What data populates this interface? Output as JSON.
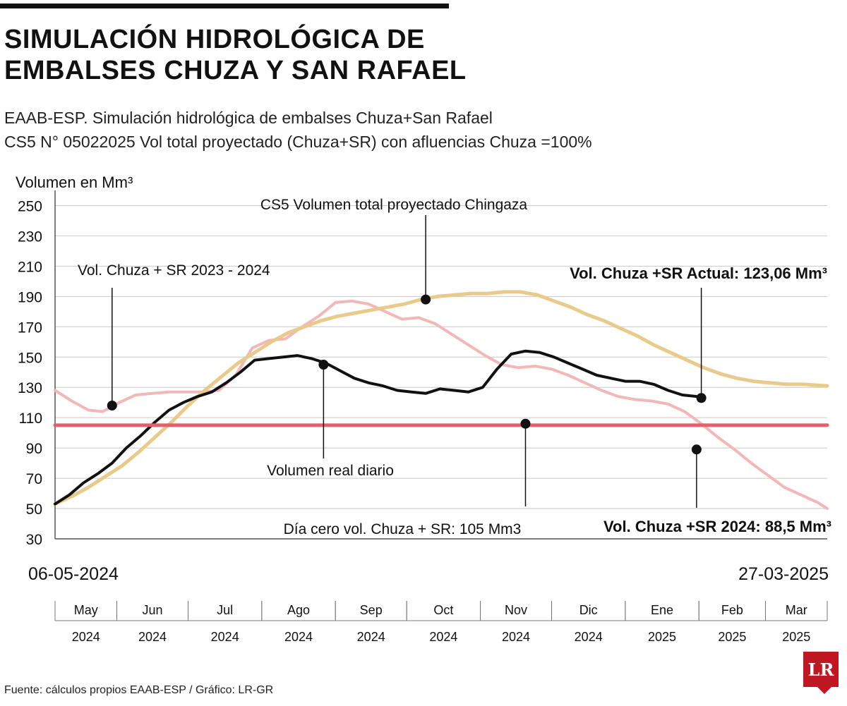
{
  "title_line1": "SIMULACIÓN HIDROLÓGICA DE",
  "title_line2": "EMBALSES CHUZA Y SAN RAFAEL",
  "subtitle_line1": "EAAB-ESP. Simulación hidrológica de embalses Chuza+San Rafael",
  "subtitle_line2": "CS5 N° 05022025 Vol total proyectado (Chuza+SR) con afluencias Chuza =100%",
  "start_date": "06-05-2024",
  "end_date": "27-03-2025",
  "source": "Fuente: cálculos propios EAAB-ESP / Gráfico: LR-GR",
  "logo_text": "LR",
  "chart_data": {
    "type": "line",
    "ylabel": "Volumen en Mm³",
    "ylim": [
      30,
      260
    ],
    "yticks": [
      250,
      230,
      210,
      190,
      170,
      150,
      130,
      110,
      90,
      70,
      50,
      30
    ],
    "xlim": [
      "2024-05-06",
      "2025-03-27"
    ],
    "grid": true,
    "months": [
      {
        "label": "May",
        "year": "2024",
        "start": "2024-05-06",
        "end": "2024-06-01"
      },
      {
        "label": "Jun",
        "year": "2024",
        "start": "2024-06-01",
        "end": "2024-07-01"
      },
      {
        "label": "Jul",
        "year": "2024",
        "start": "2024-07-01",
        "end": "2024-08-01"
      },
      {
        "label": "Ago",
        "year": "2024",
        "start": "2024-08-01",
        "end": "2024-09-01"
      },
      {
        "label": "Sep",
        "year": "2024",
        "start": "2024-09-01",
        "end": "2024-10-01"
      },
      {
        "label": "Oct",
        "year": "2024",
        "start": "2024-10-01",
        "end": "2024-11-01"
      },
      {
        "label": "Nov",
        "year": "2024",
        "start": "2024-11-01",
        "end": "2024-12-01"
      },
      {
        "label": "Dic",
        "year": "2024",
        "start": "2024-12-01",
        "end": "2025-01-01"
      },
      {
        "label": "Ene",
        "year": "2025",
        "start": "2025-01-01",
        "end": "2025-02-01"
      },
      {
        "label": "Feb",
        "year": "2025",
        "start": "2025-02-01",
        "end": "2025-03-01"
      },
      {
        "label": "Mar",
        "year": "2025",
        "start": "2025-03-01",
        "end": "2025-03-27"
      }
    ],
    "series": [
      {
        "key": "chuza_sr_2023_2024",
        "color": "#f2b8b8",
        "width": 4,
        "points": [
          [
            "2024-05-06",
            128
          ],
          [
            "2024-05-13",
            121
          ],
          [
            "2024-05-20",
            115
          ],
          [
            "2024-05-26",
            114
          ],
          [
            "2024-06-02",
            120
          ],
          [
            "2024-06-09",
            125
          ],
          [
            "2024-06-16",
            126
          ],
          [
            "2024-06-23",
            127
          ],
          [
            "2024-06-30",
            127
          ],
          [
            "2024-07-07",
            127
          ],
          [
            "2024-07-14",
            128
          ],
          [
            "2024-07-21",
            138
          ],
          [
            "2024-07-28",
            156
          ],
          [
            "2024-08-04",
            161
          ],
          [
            "2024-08-11",
            162
          ],
          [
            "2024-08-18",
            170
          ],
          [
            "2024-08-25",
            177
          ],
          [
            "2024-09-01",
            186
          ],
          [
            "2024-09-08",
            187
          ],
          [
            "2024-09-15",
            185
          ],
          [
            "2024-09-22",
            180
          ],
          [
            "2024-09-29",
            175
          ],
          [
            "2024-10-06",
            176
          ],
          [
            "2024-10-13",
            172
          ],
          [
            "2024-10-20",
            165
          ],
          [
            "2024-10-27",
            158
          ],
          [
            "2024-11-03",
            151
          ],
          [
            "2024-11-10",
            145
          ],
          [
            "2024-11-17",
            143
          ],
          [
            "2024-11-24",
            144
          ],
          [
            "2024-12-01",
            142
          ],
          [
            "2024-12-08",
            138
          ],
          [
            "2024-12-15",
            133
          ],
          [
            "2024-12-22",
            128
          ],
          [
            "2024-12-29",
            124
          ],
          [
            "2025-01-05",
            122
          ],
          [
            "2025-01-12",
            121
          ],
          [
            "2025-01-19",
            119
          ],
          [
            "2025-01-26",
            114
          ],
          [
            "2025-02-02",
            106
          ],
          [
            "2025-02-09",
            97
          ],
          [
            "2025-02-16",
            89
          ],
          [
            "2025-02-23",
            80
          ],
          [
            "2025-03-02",
            72
          ],
          [
            "2025-03-09",
            64
          ],
          [
            "2025-03-16",
            59
          ],
          [
            "2025-03-23",
            54
          ],
          [
            "2025-03-27",
            50
          ]
        ]
      },
      {
        "key": "cs5_volumen_total_proyectado",
        "color": "#e8cb8a",
        "width": 5,
        "points": [
          [
            "2024-05-06",
            53
          ],
          [
            "2024-05-13",
            58
          ],
          [
            "2024-05-20",
            64
          ],
          [
            "2024-05-27",
            71
          ],
          [
            "2024-06-03",
            78
          ],
          [
            "2024-06-10",
            87
          ],
          [
            "2024-06-17",
            97
          ],
          [
            "2024-06-24",
            107
          ],
          [
            "2024-07-01",
            118
          ],
          [
            "2024-07-08",
            128
          ],
          [
            "2024-07-15",
            137
          ],
          [
            "2024-07-22",
            146
          ],
          [
            "2024-07-29",
            153
          ],
          [
            "2024-08-05",
            160
          ],
          [
            "2024-08-12",
            166
          ],
          [
            "2024-08-19",
            170
          ],
          [
            "2024-08-26",
            174
          ],
          [
            "2024-09-02",
            177
          ],
          [
            "2024-09-09",
            179
          ],
          [
            "2024-09-16",
            181
          ],
          [
            "2024-09-23",
            183
          ],
          [
            "2024-09-30",
            185
          ],
          [
            "2024-10-07",
            188
          ],
          [
            "2024-10-14",
            190
          ],
          [
            "2024-10-21",
            191
          ],
          [
            "2024-10-28",
            192
          ],
          [
            "2024-11-04",
            192
          ],
          [
            "2024-11-11",
            193
          ],
          [
            "2024-11-18",
            193
          ],
          [
            "2024-11-25",
            191
          ],
          [
            "2024-12-02",
            187
          ],
          [
            "2024-12-09",
            183
          ],
          [
            "2024-12-16",
            178
          ],
          [
            "2024-12-23",
            174
          ],
          [
            "2024-12-30",
            169
          ],
          [
            "2025-01-06",
            164
          ],
          [
            "2025-01-13",
            158
          ],
          [
            "2025-01-20",
            153
          ],
          [
            "2025-01-27",
            148
          ],
          [
            "2025-02-03",
            143
          ],
          [
            "2025-02-10",
            139
          ],
          [
            "2025-02-17",
            136
          ],
          [
            "2025-02-24",
            134
          ],
          [
            "2025-03-03",
            133
          ],
          [
            "2025-03-10",
            132
          ],
          [
            "2025-03-17",
            132
          ],
          [
            "2025-03-27",
            131
          ]
        ]
      },
      {
        "key": "volumen_real_diario",
        "color": "#111111",
        "width": 4,
        "points": [
          [
            "2024-05-06",
            53
          ],
          [
            "2024-05-12",
            59
          ],
          [
            "2024-05-18",
            67
          ],
          [
            "2024-05-24",
            73
          ],
          [
            "2024-05-30",
            80
          ],
          [
            "2024-06-05",
            90
          ],
          [
            "2024-06-11",
            98
          ],
          [
            "2024-06-17",
            107
          ],
          [
            "2024-06-23",
            115
          ],
          [
            "2024-06-29",
            120
          ],
          [
            "2024-07-05",
            124
          ],
          [
            "2024-07-11",
            127
          ],
          [
            "2024-07-17",
            133
          ],
          [
            "2024-07-23",
            140
          ],
          [
            "2024-07-29",
            148
          ],
          [
            "2024-08-04",
            149
          ],
          [
            "2024-08-10",
            150
          ],
          [
            "2024-08-16",
            151
          ],
          [
            "2024-08-22",
            149
          ],
          [
            "2024-08-28",
            146
          ],
          [
            "2024-09-03",
            141
          ],
          [
            "2024-09-09",
            136
          ],
          [
            "2024-09-15",
            133
          ],
          [
            "2024-09-21",
            131
          ],
          [
            "2024-09-27",
            128
          ],
          [
            "2024-10-03",
            127
          ],
          [
            "2024-10-09",
            126
          ],
          [
            "2024-10-15",
            129
          ],
          [
            "2024-10-21",
            128
          ],
          [
            "2024-10-27",
            127
          ],
          [
            "2024-11-02",
            130
          ],
          [
            "2024-11-08",
            142
          ],
          [
            "2024-11-14",
            152
          ],
          [
            "2024-11-20",
            154
          ],
          [
            "2024-11-26",
            153
          ],
          [
            "2024-12-02",
            150
          ],
          [
            "2024-12-08",
            146
          ],
          [
            "2024-12-14",
            142
          ],
          [
            "2024-12-20",
            138
          ],
          [
            "2024-12-26",
            136
          ],
          [
            "2025-01-01",
            134
          ],
          [
            "2025-01-07",
            134
          ],
          [
            "2025-01-13",
            132
          ],
          [
            "2025-01-19",
            128
          ],
          [
            "2025-01-25",
            125
          ],
          [
            "2025-01-31",
            124
          ],
          [
            "2025-02-02",
            123
          ]
        ]
      },
      {
        "key": "dia_cero",
        "color": "#e5606f",
        "width": 5,
        "points": [
          [
            "2024-05-06",
            105
          ],
          [
            "2025-03-27",
            105
          ]
        ]
      }
    ],
    "annotations": [
      {
        "text": "Vol. Chuza + SR 2023 - 2024",
        "date": "2024-05-30",
        "value": 118,
        "bold": false
      },
      {
        "text": "CS5 Volumen total proyectado Chingaza",
        "date": "2024-10-09",
        "value": 188,
        "bold": false
      },
      {
        "text": "Volumen real diario",
        "date": "2024-08-27",
        "value": 145,
        "bold": false
      },
      {
        "text": "Día cero vol. Chuza + SR: 105 Mm3",
        "date": "2024-11-20",
        "value": 106,
        "bold": false
      },
      {
        "text": "Vol. Chuza +SR Actual: 123,06 Mm³",
        "date": "2025-02-02",
        "value": 123,
        "bold": true
      },
      {
        "text": "Vol. Chuza +SR 2024: 88,5 Mm³",
        "date": "2025-01-31",
        "value": 89,
        "bold": true
      }
    ]
  }
}
